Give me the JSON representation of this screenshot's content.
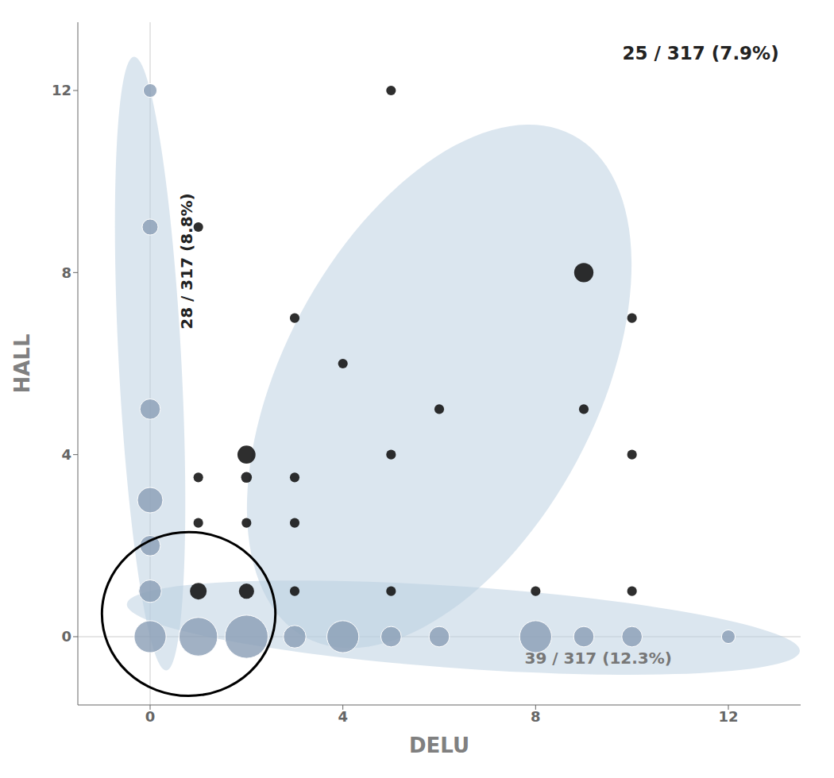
{
  "chart_data": {
    "type": "scatter",
    "xlabel": "DELU",
    "ylabel": "HALL",
    "xlim": [
      -1.5,
      13.5
    ],
    "ylim": [
      -1.5,
      13.5
    ],
    "xticks": [
      0,
      4,
      8,
      12
    ],
    "yticks": [
      0,
      4,
      8,
      12
    ],
    "grid": false,
    "annotations": [
      "25 / 317 (7.9%)",
      "28 / 317 (8.8%)",
      "39 / 317 (12.3%)"
    ],
    "reference_lines": {
      "x": 0,
      "y": 0
    },
    "regions": [
      {
        "cx": 0.0,
        "cy": 6.0,
        "width": 1.3,
        "height": 13.5,
        "angle": 3,
        "color": "#b8cedf"
      },
      {
        "cx": 6.5,
        "cy": 0.2,
        "width": 14.0,
        "height": 1.8,
        "angle": -4,
        "color": "#b8cedf"
      },
      {
        "cx": 6.0,
        "cy": 5.5,
        "width": 6.5,
        "height": 12.5,
        "angle": -28,
        "color": "#b8cedf"
      }
    ],
    "series": [
      {
        "color": "#8a9db5",
        "points": [
          {
            "x": 0,
            "y": 12,
            "size": 40
          },
          {
            "x": 0,
            "y": 9,
            "size": 55
          },
          {
            "x": 0,
            "y": 5,
            "size": 90
          },
          {
            "x": 0,
            "y": 3,
            "size": 140
          },
          {
            "x": 0,
            "y": 2,
            "size": 90
          },
          {
            "x": 0,
            "y": 1,
            "size": 110
          },
          {
            "x": 0,
            "y": 0,
            "size": 220
          },
          {
            "x": 1,
            "y": 0,
            "size": 320
          },
          {
            "x": 2,
            "y": 0,
            "size": 400
          },
          {
            "x": 3,
            "y": 0,
            "size": 110
          },
          {
            "x": 4,
            "y": 0,
            "size": 220
          },
          {
            "x": 5,
            "y": 0,
            "size": 90
          },
          {
            "x": 6,
            "y": 0,
            "size": 90
          },
          {
            "x": 8,
            "y": 0,
            "size": 220
          },
          {
            "x": 9,
            "y": 0,
            "size": 90
          },
          {
            "x": 10,
            "y": 0,
            "size": 90
          },
          {
            "x": 12,
            "y": 0,
            "size": 40
          }
        ]
      },
      {
        "color": "#111111",
        "points": [
          {
            "x": 5,
            "y": 12,
            "size": 20
          },
          {
            "x": 1,
            "y": 9,
            "size": 20
          },
          {
            "x": 9,
            "y": 8,
            "size": 80
          },
          {
            "x": 3,
            "y": 7,
            "size": 20
          },
          {
            "x": 10,
            "y": 7,
            "size": 20
          },
          {
            "x": 4,
            "y": 6,
            "size": 20
          },
          {
            "x": 6,
            "y": 5,
            "size": 20
          },
          {
            "x": 9,
            "y": 5,
            "size": 20
          },
          {
            "x": 2,
            "y": 4,
            "size": 70
          },
          {
            "x": 5,
            "y": 4,
            "size": 20
          },
          {
            "x": 10,
            "y": 4,
            "size": 20
          },
          {
            "x": 1,
            "y": 3.5,
            "size": 20
          },
          {
            "x": 2,
            "y": 3.5,
            "size": 25
          },
          {
            "x": 3,
            "y": 3.5,
            "size": 20
          },
          {
            "x": 1,
            "y": 2.5,
            "size": 20
          },
          {
            "x": 2,
            "y": 2.5,
            "size": 20
          },
          {
            "x": 3,
            "y": 2.5,
            "size": 20
          },
          {
            "x": 1,
            "y": 1,
            "size": 60
          },
          {
            "x": 2,
            "y": 1,
            "size": 50
          },
          {
            "x": 3,
            "y": 1,
            "size": 20
          },
          {
            "x": 5,
            "y": 1,
            "size": 20
          },
          {
            "x": 8,
            "y": 1,
            "size": 20
          },
          {
            "x": 10,
            "y": 1,
            "size": 20
          }
        ]
      }
    ],
    "circle": {
      "cx": 0.8,
      "cy": 0.5,
      "radius": 1.8,
      "color": "#000000"
    }
  }
}
